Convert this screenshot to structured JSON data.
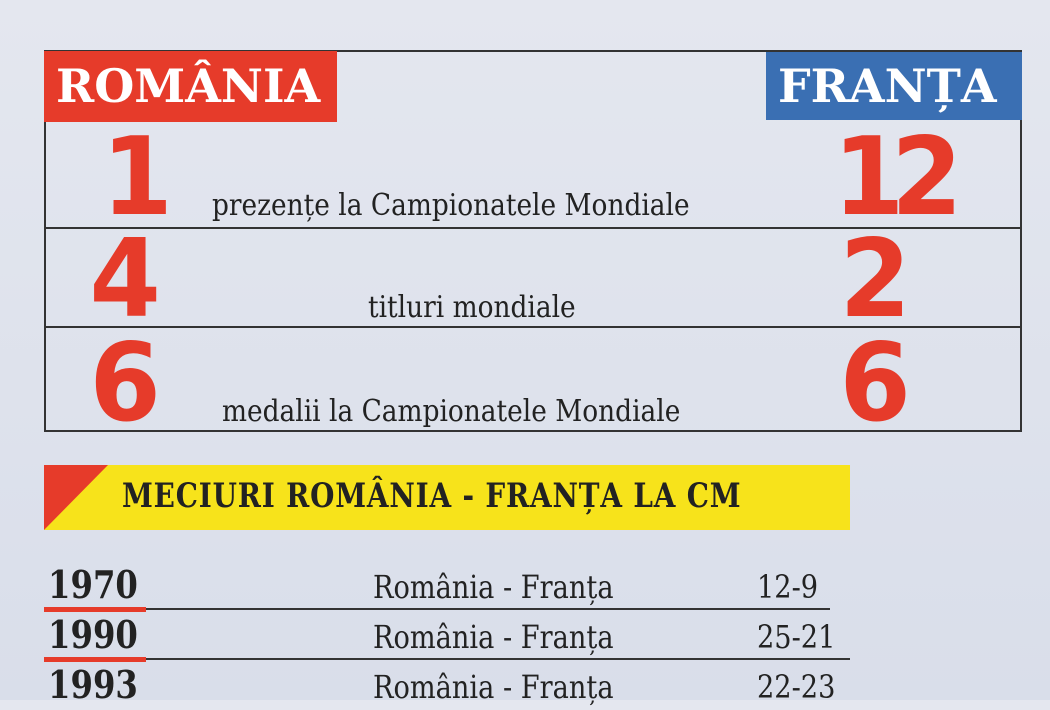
{
  "header": {
    "left": "ROMÂNIA",
    "right": "FRANȚA"
  },
  "stats": [
    {
      "romania": "1",
      "label": "prezențe la Campionatele Mondiale",
      "franta": "12"
    },
    {
      "romania": "4",
      "label": "titluri mondiale",
      "franta": "2"
    },
    {
      "romania": "6",
      "label": "medalii la Campionatele Mondiale",
      "franta": "6"
    }
  ],
  "matches": {
    "title": "MECIURI ROMÂNIA - FRANȚA LA CM",
    "rows": [
      {
        "year": "1970",
        "teams": "România - Franța",
        "score": "12-9"
      },
      {
        "year": "1990",
        "teams": "România - Franța",
        "score": "25-21"
      },
      {
        "year": "1993",
        "teams": "România - Franța",
        "score": "22-23"
      }
    ]
  },
  "colors": {
    "red": "#e63b2a",
    "blue": "#3a6fb3",
    "yellow": "#f7e31b"
  }
}
